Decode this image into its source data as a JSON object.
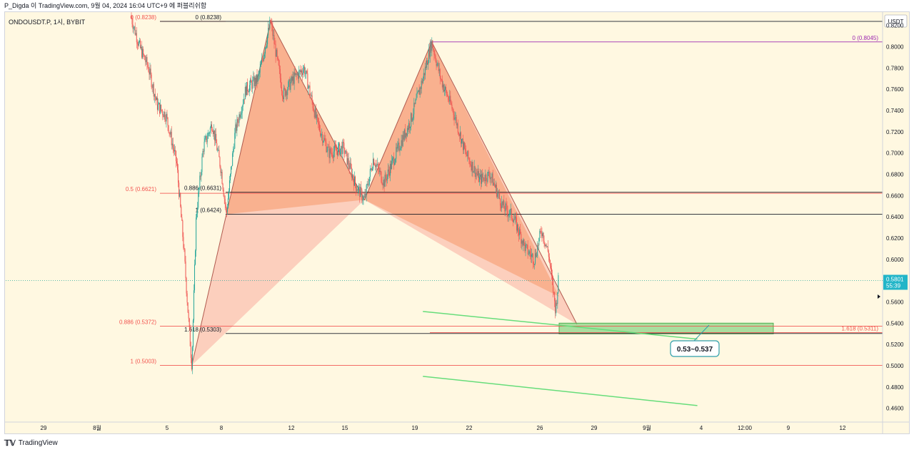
{
  "header": {
    "publisher_line": "P_Digda 이 TradingView.com, 9월 04, 2024 16:04 UTC+9 에 퍼블리쉬함",
    "symbol_line": "ONDOUSDT.P, 1시, BYBIT"
  },
  "footer": {
    "logo_text": "TradingView"
  },
  "price_axis": {
    "currency_label": "USDT",
    "last_price": "0.5801",
    "countdown": "55:39"
  },
  "colors": {
    "background": "#fff8e1",
    "candle_up": "#26a69a",
    "candle_down": "#ef5350",
    "pattern_fill": "#f8a47c",
    "pattern_fill_light": "#fbc2b0",
    "fib_red": "#f2544f",
    "fib_purple": "#9c27b0",
    "target_box": "#7cd07a",
    "trend_green": "#4caf50",
    "callout_border": "#2e9faa"
  },
  "annotations": {
    "target_label": "0.53~0.537"
  },
  "chart_data": {
    "type": "candlestick",
    "title": "",
    "xlabel": "",
    "ylabel": "",
    "ylim": [
      0.447,
      0.8325
    ],
    "grid": false,
    "x_ticks": [
      "29",
      "8월",
      "5",
      "8",
      "12",
      "15",
      "19",
      "22",
      "26",
      "29",
      "9월",
      "4",
      "12:00",
      "9",
      "12"
    ],
    "y_ticks": [
      "0.8200",
      "0.8000",
      "0.7800",
      "0.7600",
      "0.7400",
      "0.7200",
      "0.7000",
      "0.6800",
      "0.6600",
      "0.6400",
      "0.6200",
      "0.6000",
      "0.5600",
      "0.5400",
      "0.5200",
      "0.5000",
      "0.4800",
      "0.4600"
    ],
    "price_series": [
      {
        "d": 0.0,
        "p": 0.829
      },
      {
        "d": 0.5,
        "p": 0.8
      },
      {
        "d": 1.0,
        "p": 0.78
      },
      {
        "d": 1.5,
        "p": 0.745
      },
      {
        "d": 2.0,
        "p": 0.735
      },
      {
        "d": 2.6,
        "p": 0.69
      },
      {
        "d": 3.0,
        "p": 0.61
      },
      {
        "d": 3.3,
        "p": 0.535
      },
      {
        "d": 3.45,
        "p": 0.5003
      },
      {
        "d": 3.7,
        "p": 0.64
      },
      {
        "d": 4.1,
        "p": 0.705
      },
      {
        "d": 4.6,
        "p": 0.728
      },
      {
        "d": 5.1,
        "p": 0.685
      },
      {
        "d": 5.4,
        "p": 0.6424
      },
      {
        "d": 5.9,
        "p": 0.72
      },
      {
        "d": 6.5,
        "p": 0.76
      },
      {
        "d": 7.2,
        "p": 0.77
      },
      {
        "d": 7.9,
        "p": 0.8238
      },
      {
        "d": 8.6,
        "p": 0.755
      },
      {
        "d": 9.2,
        "p": 0.77
      },
      {
        "d": 9.8,
        "p": 0.78
      },
      {
        "d": 10.5,
        "p": 0.73
      },
      {
        "d": 11.2,
        "p": 0.7
      },
      {
        "d": 12.0,
        "p": 0.705
      },
      {
        "d": 12.7,
        "p": 0.67
      },
      {
        "d": 13.2,
        "p": 0.656
      },
      {
        "d": 13.7,
        "p": 0.695
      },
      {
        "d": 14.3,
        "p": 0.672
      },
      {
        "d": 15.0,
        "p": 0.7
      },
      {
        "d": 15.8,
        "p": 0.73
      },
      {
        "d": 16.5,
        "p": 0.77
      },
      {
        "d": 17.0,
        "p": 0.8045
      },
      {
        "d": 17.5,
        "p": 0.77
      },
      {
        "d": 18.2,
        "p": 0.74
      },
      {
        "d": 18.9,
        "p": 0.7
      },
      {
        "d": 19.7,
        "p": 0.675
      },
      {
        "d": 20.3,
        "p": 0.68
      },
      {
        "d": 21.0,
        "p": 0.65
      },
      {
        "d": 21.6,
        "p": 0.64
      },
      {
        "d": 22.3,
        "p": 0.61
      },
      {
        "d": 22.8,
        "p": 0.6
      },
      {
        "d": 23.2,
        "p": 0.628
      },
      {
        "d": 23.6,
        "p": 0.605
      },
      {
        "d": 24.0,
        "p": 0.552
      },
      {
        "d": 24.15,
        "p": 0.5801
      }
    ],
    "harmonic_pattern": {
      "X": {
        "d": 3.45,
        "p": 0.5003
      },
      "A": {
        "d": 7.9,
        "p": 0.8238
      },
      "B": {
        "d": 13.2,
        "p": 0.656
      },
      "C": {
        "d": 17.0,
        "p": 0.8045
      },
      "D": {
        "d": 25.2,
        "p": 0.539
      }
    },
    "fib_levels": [
      {
        "label": "0 (0.8238)",
        "price": 0.8238,
        "color": "#f2544f",
        "side": "left"
      },
      {
        "label": "0.5 (0.6621)",
        "price": 0.6621,
        "color": "#f2544f",
        "side": "left"
      },
      {
        "label": "0.886 (0.5372)",
        "price": 0.5372,
        "color": "#f2544f",
        "side": "left"
      },
      {
        "label": "1 (0.5003)",
        "price": 0.5003,
        "color": "#f2544f",
        "side": "left"
      },
      {
        "label": "0 (0.8238)",
        "price": 0.8238,
        "color": "#131722",
        "side": "mid"
      },
      {
        "label": "0.886 (0.6631)",
        "price": 0.6631,
        "color": "#131722",
        "side": "mid"
      },
      {
        "label": "1 (0.6424)",
        "price": 0.6424,
        "color": "#131722",
        "side": "mid"
      },
      {
        "label": "1.618 (0.5303)",
        "price": 0.5303,
        "color": "#131722",
        "side": "mid"
      },
      {
        "label": "0 (0.8045)",
        "price": 0.8045,
        "color": "#9c27b0",
        "side": "right"
      },
      {
        "label": "1.618 (0.5311)",
        "price": 0.5311,
        "color": "#f2544f",
        "side": "right"
      }
    ],
    "target_zone": {
      "from": 0.53,
      "to": 0.54
    },
    "trendlines": [
      {
        "p1": {
          "d": 16.5,
          "p": 0.551
        },
        "p2": {
          "d": 32.0,
          "p": 0.525
        }
      },
      {
        "p1": {
          "d": 16.5,
          "p": 0.49
        },
        "p2": {
          "d": 32.0,
          "p": 0.4625
        }
      }
    ]
  }
}
